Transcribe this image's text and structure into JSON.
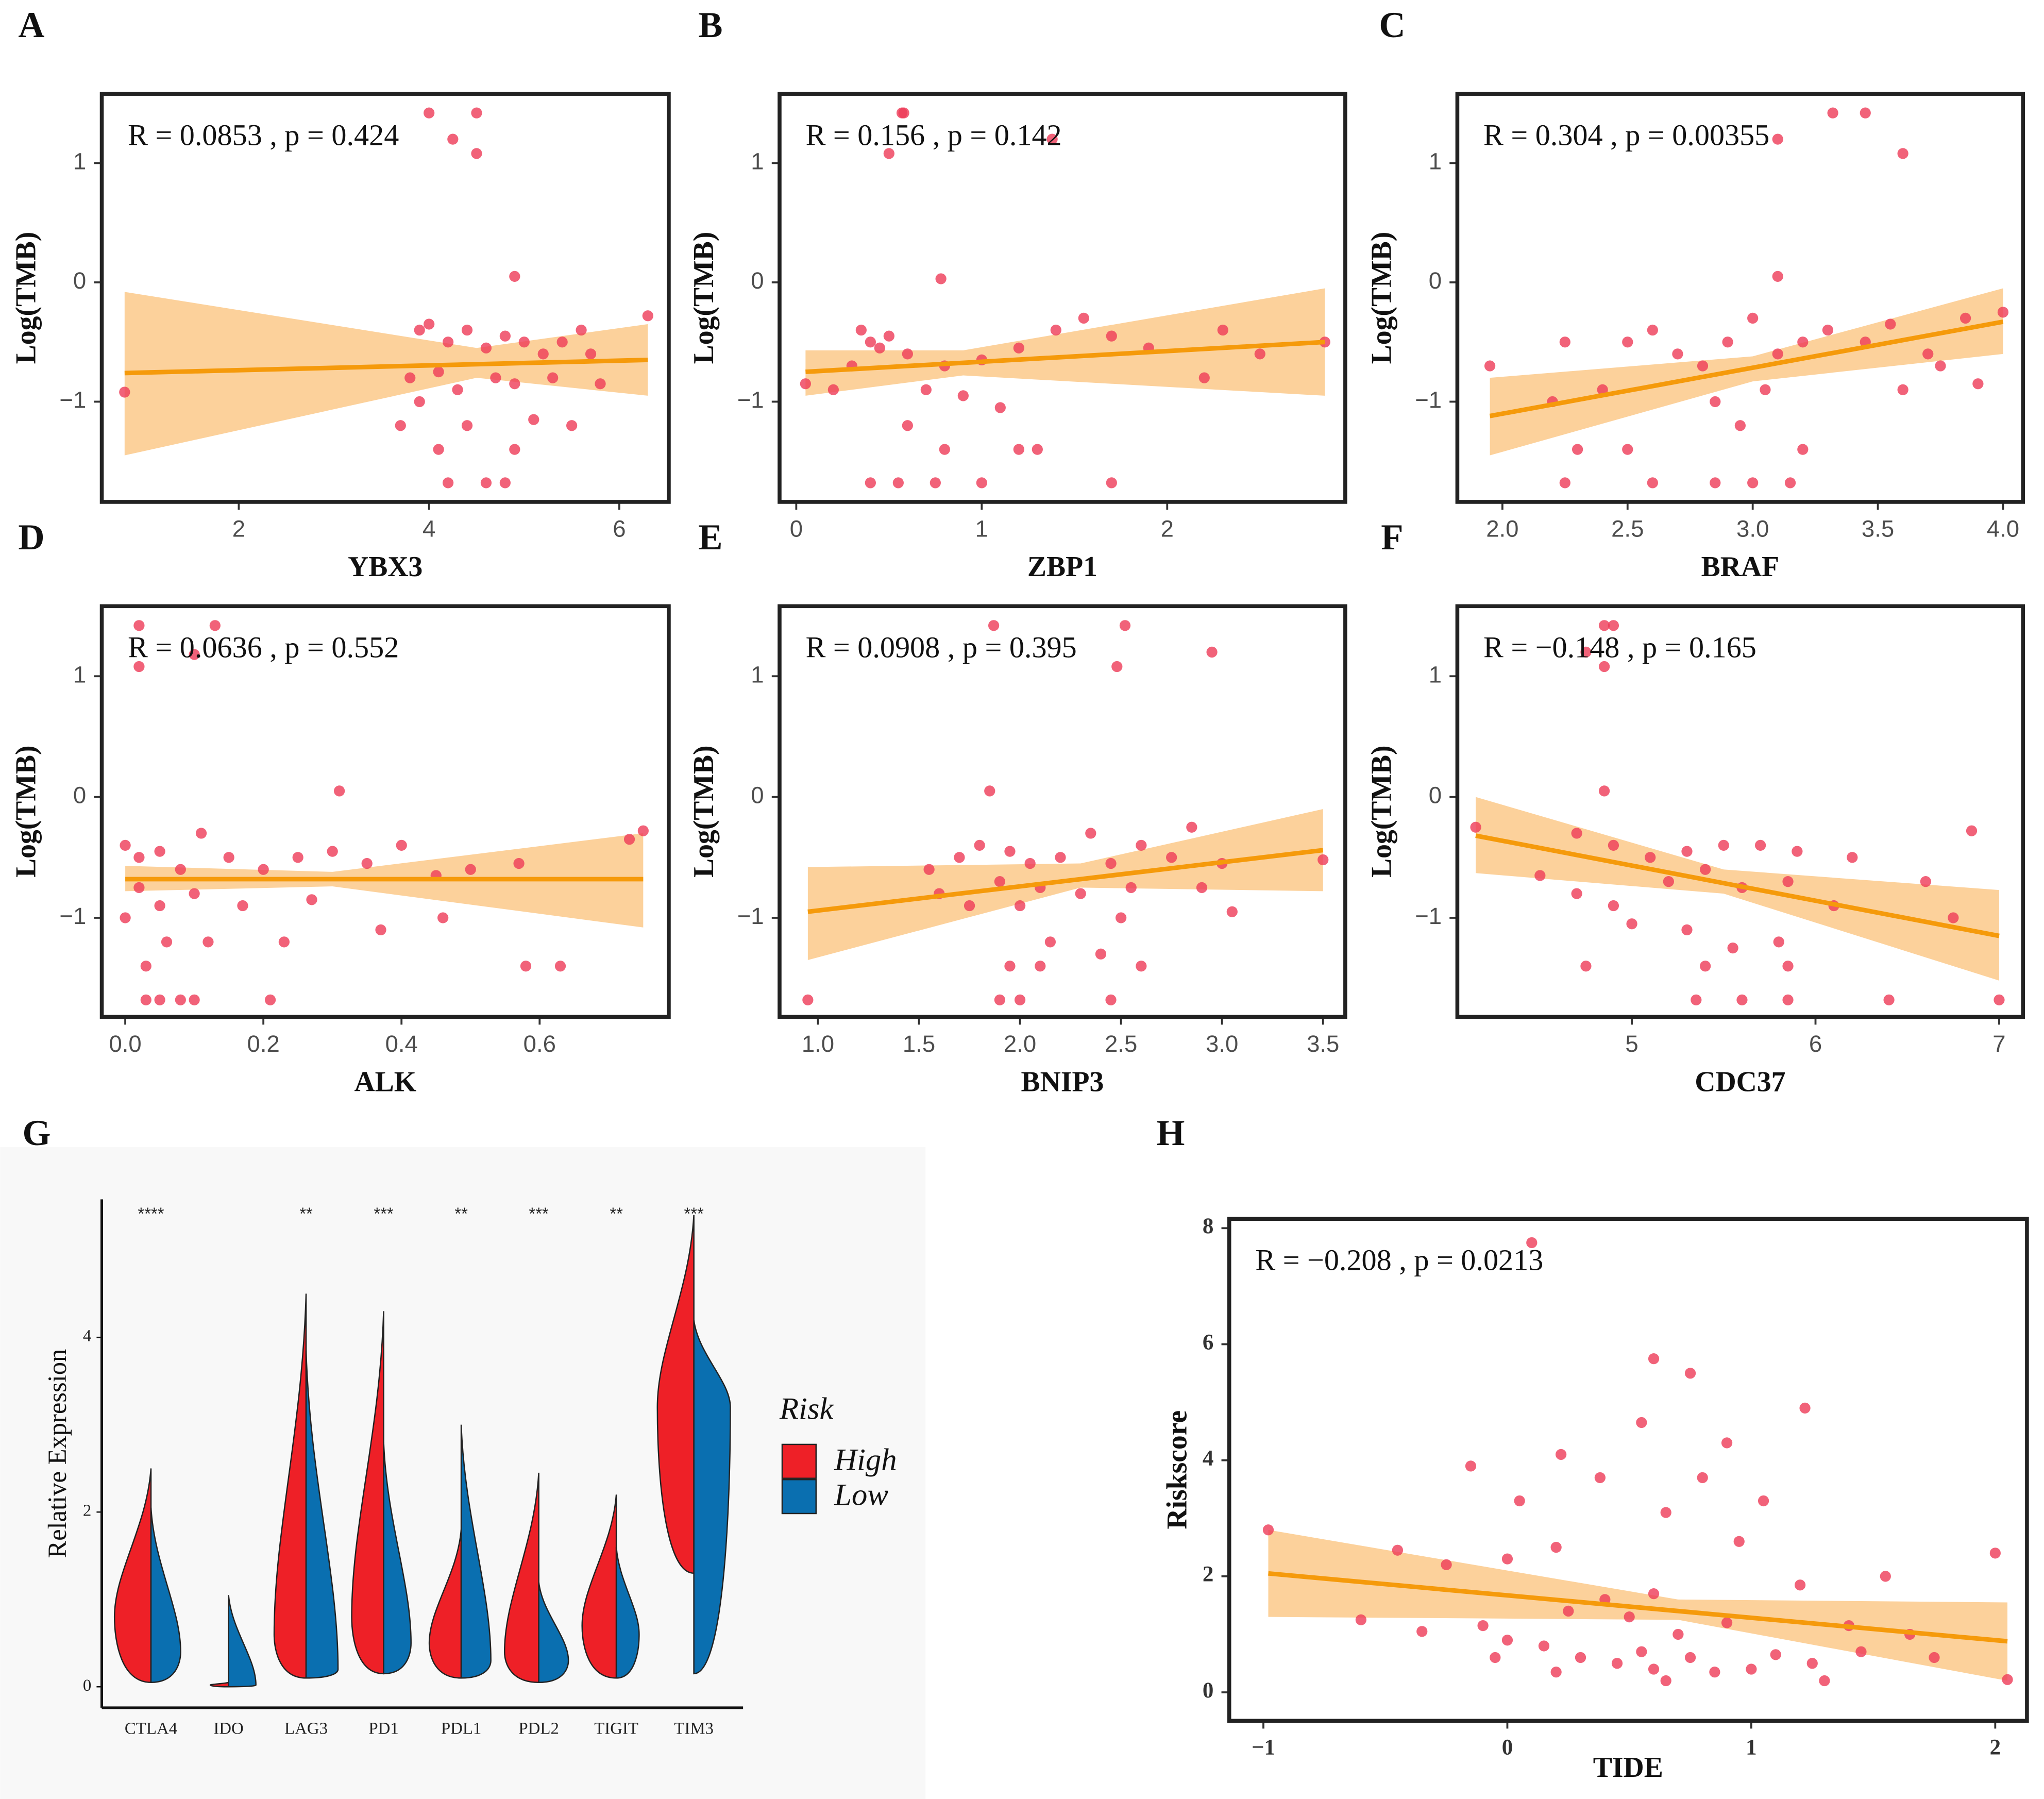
{
  "chart_data": [
    {
      "type": "scatter",
      "panel_label": "A",
      "xlabel": "YBX3",
      "ylabel": "Log(TMB)",
      "annotation": "R = 0.0853 , p = 0.424",
      "color": "#ee3b58",
      "fit_color": "#f59a0b",
      "band_color": "#fcc98a",
      "xlim": [
        0.56,
        6.52
      ],
      "ylim": [
        -1.84,
        1.58
      ],
      "xticks": [
        2,
        4,
        6
      ],
      "yticks": [
        {
          "value": -1,
          "label": "−1"
        },
        0,
        1
      ],
      "x": [
        0.8,
        4.0,
        4.5,
        4.25,
        4.5,
        4.9,
        6.3,
        3.9,
        4.0,
        4.2,
        4.4,
        4.6,
        4.8,
        5.0,
        5.2,
        5.4,
        5.6,
        3.8,
        4.1,
        4.3,
        4.7,
        4.9,
        5.3,
        5.8,
        3.9,
        4.4,
        5.1,
        5.5,
        4.1,
        4.9,
        4.2,
        4.6,
        4.8,
        3.7,
        5.7
      ],
      "y": [
        -0.92,
        1.42,
        1.42,
        1.2,
        1.08,
        0.05,
        -0.28,
        -0.4,
        -0.35,
        -0.5,
        -0.4,
        -0.55,
        -0.45,
        -0.5,
        -0.6,
        -0.5,
        -0.4,
        -0.8,
        -0.75,
        -0.9,
        -0.8,
        -0.85,
        -0.8,
        -0.85,
        -1.0,
        -1.2,
        -1.15,
        -1.2,
        -1.4,
        -1.4,
        -1.68,
        -1.68,
        -1.68,
        -1.2,
        -0.6
      ],
      "fit": {
        "x": [
          0.8,
          6.3
        ],
        "y": [
          -0.76,
          -0.65
        ]
      },
      "band": {
        "x": [
          0.8,
          4.5,
          6.3
        ],
        "lower": [
          -1.45,
          -0.8,
          -0.95
        ],
        "upper": [
          -0.08,
          -0.55,
          -0.35
        ]
      }
    },
    {
      "type": "scatter",
      "panel_label": "B",
      "xlabel": "ZBP1",
      "ylabel": "Log(TMB)",
      "annotation": "R = 0.156 , p = 0.142",
      "color": "#ee3b58",
      "fit_color": "#f59a0b",
      "band_color": "#fcc98a",
      "xlim": [
        -0.09,
        2.96
      ],
      "ylim": [
        -1.84,
        1.58
      ],
      "xticks": [
        0,
        1,
        2
      ],
      "yticks": [
        {
          "value": -1,
          "label": "−1"
        },
        0,
        1
      ],
      "x": [
        0.57,
        0.58,
        0.5,
        1.38,
        0.78,
        0.05,
        0.2,
        0.3,
        0.35,
        0.4,
        0.45,
        0.5,
        0.6,
        0.8,
        1.0,
        1.2,
        1.4,
        1.55,
        1.7,
        1.9,
        2.3,
        2.5,
        2.85,
        2.2,
        0.7,
        0.9,
        1.1,
        0.6,
        0.8,
        1.2,
        1.3,
        0.4,
        0.55,
        0.75,
        1.0,
        1.7
      ],
      "y": [
        1.42,
        1.42,
        1.08,
        1.2,
        0.03,
        -0.85,
        -0.9,
        -0.7,
        -0.4,
        -0.5,
        -0.55,
        -0.45,
        -0.6,
        -0.7,
        -0.65,
        -0.55,
        -0.4,
        -0.3,
        -0.45,
        -0.55,
        -0.4,
        -0.6,
        -0.5,
        -0.8,
        -0.9,
        -0.95,
        -1.05,
        -1.2,
        -1.4,
        -1.4,
        -1.4,
        -1.68,
        -1.68,
        -1.68,
        -1.68,
        -1.68
      ],
      "fit": {
        "x": [
          0.05,
          2.85
        ],
        "y": [
          -0.75,
          -0.5
        ]
      },
      "band": {
        "x": [
          0.05,
          0.9,
          2.85
        ],
        "lower": [
          -0.95,
          -0.78,
          -0.95
        ],
        "upper": [
          -0.57,
          -0.57,
          -0.05
        ]
      }
    },
    {
      "type": "scatter",
      "panel_label": "C",
      "xlabel": "BRAF",
      "ylabel": "Log(TMB)",
      "annotation": "R = 0.304 , p = 0.00355",
      "color": "#ee3b58",
      "fit_color": "#f59a0b",
      "band_color": "#fcc98a",
      "xlim": [
        1.82,
        4.08
      ],
      "ylim": [
        -1.84,
        1.58
      ],
      "xticks": [
        {
          "value": 2,
          "label": "2.0"
        },
        2.5,
        {
          "value": 3,
          "label": "3.0"
        },
        3.5,
        {
          "value": 4,
          "label": "4.0"
        }
      ],
      "yticks": [
        {
          "value": -1,
          "label": "−1"
        },
        0,
        1
      ],
      "x": [
        3.32,
        3.45,
        3.6,
        3.1,
        3.1,
        1.95,
        2.25,
        2.5,
        2.6,
        2.7,
        2.8,
        2.9,
        3.0,
        3.1,
        3.2,
        3.3,
        3.45,
        3.55,
        3.7,
        3.85,
        4.0,
        3.6,
        3.75,
        3.9,
        2.4,
        2.85,
        3.05,
        2.2,
        2.3,
        2.5,
        2.95,
        3.2,
        2.25,
        2.6,
        2.85,
        3.0,
        3.15
      ],
      "y": [
        1.42,
        1.42,
        1.08,
        1.2,
        0.05,
        -0.7,
        -0.5,
        -0.5,
        -0.4,
        -0.6,
        -0.7,
        -0.5,
        -0.3,
        -0.6,
        -0.5,
        -0.4,
        -0.5,
        -0.35,
        -0.6,
        -0.3,
        -0.25,
        -0.9,
        -0.7,
        -0.85,
        -0.9,
        -1.0,
        -0.9,
        -1.0,
        -1.4,
        -1.4,
        -1.2,
        -1.4,
        -1.68,
        -1.68,
        -1.68,
        -1.68,
        -1.68
      ],
      "fit": {
        "x": [
          1.95,
          4.0
        ],
        "y": [
          -1.12,
          -0.33
        ]
      },
      "band": {
        "x": [
          1.95,
          3.0,
          4.0
        ],
        "lower": [
          -1.45,
          -0.83,
          -0.6
        ],
        "upper": [
          -0.8,
          -0.62,
          -0.05
        ]
      }
    },
    {
      "type": "scatter",
      "panel_label": "D",
      "xlabel": "ALK",
      "ylabel": "Log(TMB)",
      "annotation": "R = 0.0636 , p = 0.552",
      "color": "#ee3b58",
      "fit_color": "#f59a0b",
      "band_color": "#fcc98a",
      "xlim": [
        -0.034,
        0.787
      ],
      "ylim": [
        -1.82,
        1.58
      ],
      "xticks": [
        {
          "value": 0,
          "label": "0.0"
        },
        0.2,
        0.4,
        0.6
      ],
      "yticks": [
        {
          "value": -1,
          "label": "−1"
        },
        0,
        1
      ],
      "x": [
        0.02,
        0.13,
        0.02,
        0.1,
        0.31,
        0.0,
        0.02,
        0.05,
        0.08,
        0.11,
        0.15,
        0.2,
        0.25,
        0.3,
        0.35,
        0.4,
        0.45,
        0.5,
        0.57,
        0.73,
        0.75,
        0.02,
        0.05,
        0.1,
        0.17,
        0.27,
        0.37,
        0.0,
        0.03,
        0.06,
        0.12,
        0.23,
        0.03,
        0.05,
        0.08,
        0.1,
        0.21,
        0.58,
        0.63,
        0.46
      ],
      "y": [
        1.42,
        1.42,
        1.08,
        1.18,
        0.05,
        -0.4,
        -0.5,
        -0.45,
        -0.6,
        -0.3,
        -0.5,
        -0.6,
        -0.5,
        -0.45,
        -0.55,
        -0.4,
        -0.65,
        -0.6,
        -0.55,
        -0.35,
        -0.28,
        -0.75,
        -0.9,
        -0.8,
        -0.9,
        -0.85,
        -1.1,
        -1.0,
        -1.4,
        -1.2,
        -1.2,
        -1.2,
        -1.68,
        -1.68,
        -1.68,
        -1.68,
        -1.68,
        -1.4,
        -1.4,
        -1.0
      ],
      "fit": {
        "x": [
          0.0,
          0.75
        ],
        "y": [
          -0.68,
          -0.68
        ]
      },
      "band": {
        "x": [
          0.0,
          0.3,
          0.75
        ],
        "lower": [
          -0.78,
          -0.74,
          -1.08
        ],
        "upper": [
          -0.57,
          -0.62,
          -0.3
        ]
      }
    },
    {
      "type": "scatter",
      "panel_label": "E",
      "xlabel": "BNIP3",
      "ylabel": "Log(TMB)",
      "annotation": "R = 0.0908 , p = 0.395",
      "color": "#ee3b58",
      "fit_color": "#f59a0b",
      "band_color": "#fcc98a",
      "xlim": [
        0.81,
        3.61
      ],
      "ylim": [
        -1.82,
        1.58
      ],
      "xticks": [
        {
          "value": 1,
          "label": "1.0"
        },
        1.5,
        {
          "value": 2,
          "label": "2.0"
        },
        2.5,
        {
          "value": 3,
          "label": "3.0"
        },
        3.5
      ],
      "yticks": [
        {
          "value": -1,
          "label": "−1"
        },
        0,
        1
      ],
      "x": [
        1.87,
        2.52,
        2.48,
        2.95,
        1.85,
        0.95,
        1.55,
        1.7,
        1.8,
        1.95,
        2.05,
        2.2,
        2.35,
        2.45,
        2.6,
        2.75,
        2.85,
        3.0,
        3.5,
        1.6,
        1.9,
        2.1,
        2.3,
        2.55,
        2.9,
        3.05,
        2.0,
        2.15,
        2.5,
        2.4,
        1.95,
        2.1,
        2.6,
        1.9,
        2.0,
        2.45,
        1.75
      ],
      "y": [
        1.42,
        1.42,
        1.08,
        1.2,
        0.05,
        -1.68,
        -0.6,
        -0.5,
        -0.4,
        -0.45,
        -0.55,
        -0.5,
        -0.3,
        -0.55,
        -0.4,
        -0.5,
        -0.25,
        -0.55,
        -0.52,
        -0.8,
        -0.7,
        -0.75,
        -0.8,
        -0.75,
        -0.75,
        -0.95,
        -0.9,
        -1.2,
        -1.0,
        -1.3,
        -1.4,
        -1.4,
        -1.4,
        -1.68,
        -1.68,
        -1.68,
        -0.9
      ],
      "fit": {
        "x": [
          0.95,
          3.5
        ],
        "y": [
          -0.95,
          -0.44
        ]
      },
      "band": {
        "x": [
          0.95,
          2.3,
          3.5
        ],
        "lower": [
          -1.35,
          -0.75,
          -0.78
        ],
        "upper": [
          -0.58,
          -0.55,
          -0.1
        ]
      }
    },
    {
      "type": "scatter",
      "panel_label": "F",
      "xlabel": "CDC37",
      "ylabel": "Log(TMB)",
      "annotation": "R = −0.148 , p = 0.165",
      "color": "#ee3b58",
      "fit_color": "#f59a0b",
      "band_color": "#fcc98a",
      "xlim": [
        4.05,
        7.13
      ],
      "ylim": [
        -1.82,
        1.58
      ],
      "xticks": [
        5,
        6,
        7
      ],
      "yticks": [
        {
          "value": -1,
          "label": "−1"
        },
        0,
        1
      ],
      "x": [
        4.85,
        4.9,
        4.85,
        4.75,
        4.85,
        4.15,
        4.7,
        4.9,
        5.1,
        5.3,
        5.5,
        5.7,
        5.9,
        6.2,
        6.85,
        4.5,
        4.7,
        4.9,
        5.2,
        5.4,
        5.6,
        5.85,
        6.1,
        6.6,
        6.75,
        4.75,
        5.0,
        5.3,
        5.55,
        5.8,
        5.4,
        5.85,
        5.35,
        5.6,
        5.85,
        6.4,
        7.0
      ],
      "y": [
        1.42,
        1.42,
        1.08,
        1.2,
        0.05,
        -0.25,
        -0.3,
        -0.4,
        -0.5,
        -0.45,
        -0.4,
        -0.4,
        -0.45,
        -0.5,
        -0.28,
        -0.65,
        -0.8,
        -0.9,
        -0.7,
        -0.6,
        -0.75,
        -0.7,
        -0.9,
        -0.7,
        -1.0,
        -1.4,
        -1.05,
        -1.1,
        -1.25,
        -1.2,
        -1.4,
        -1.4,
        -1.68,
        -1.68,
        -1.68,
        -1.68,
        -1.68
      ],
      "fit": {
        "x": [
          4.15,
          7.0
        ],
        "y": [
          -0.32,
          -1.15
        ]
      },
      "band": {
        "x": [
          4.15,
          5.5,
          7.0
        ],
        "lower": [
          -0.63,
          -0.8,
          -1.52
        ],
        "upper": [
          0.0,
          -0.6,
          -0.77
        ]
      }
    },
    {
      "type": "violin",
      "panel_label": "G",
      "ylabel": "Relative Expression",
      "categories": [
        "CTLA4",
        "IDO",
        "LAG3",
        "PD1",
        "PDL1",
        "PDL2",
        "TIGIT",
        "TIM3"
      ],
      "significance": [
        "****",
        null,
        "**",
        "***",
        "**",
        "***",
        "**",
        "***"
      ],
      "ylim": [
        -0.24,
        5.58
      ],
      "yticks": [
        0,
        2,
        4
      ],
      "legend_title": "Risk",
      "series": [
        {
          "name": "High",
          "color": "#ee2027",
          "min": [
            0.05,
            0,
            0.1,
            0.15,
            0.1,
            0.05,
            0.1,
            1.3
          ],
          "max": [
            2.5,
            0.05,
            4.5,
            4.3,
            1.8,
            2.45,
            2.2,
            5.4
          ],
          "mode": [
            0.8,
            0.02,
            0.6,
            0.8,
            0.5,
            0.4,
            0.7,
            3.2
          ],
          "density": [
            0.8,
            0.4,
            0.7,
            0.7,
            0.7,
            0.75,
            0.75,
            0.8
          ]
        },
        {
          "name": "Low",
          "color": "#0a6fb0",
          "min": [
            0.05,
            0,
            0.1,
            0.15,
            0.1,
            0.05,
            0.1,
            0.15
          ],
          "max": [
            2.05,
            1.05,
            3.85,
            2.8,
            3.0,
            1.2,
            1.6,
            4.2
          ],
          "mode": [
            0.4,
            0.02,
            0.2,
            0.5,
            0.3,
            0.3,
            0.6,
            3.2
          ],
          "density": [
            0.65,
            0.6,
            0.7,
            0.6,
            0.65,
            0.65,
            0.5,
            0.8
          ]
        }
      ]
    },
    {
      "type": "scatter",
      "panel_label": "H",
      "xlabel": "TIDE",
      "ylabel": "Riskscore",
      "annotation": "R = −0.208 , p = 0.0213",
      "color": "#ee3b58",
      "fit_color": "#f59a0b",
      "band_color": "#fcc98a",
      "xlim": [
        -1.14,
        2.13
      ],
      "ylim": [
        -0.49,
        8.16
      ],
      "xticks": [
        {
          "value": -1,
          "label": "−1"
        },
        0,
        1,
        2
      ],
      "yticks": [
        0,
        2,
        4,
        6,
        8
      ],
      "x": [
        -0.98,
        0.1,
        0.6,
        0.75,
        1.22,
        0.55,
        0.9,
        -0.15,
        0.22,
        0.38,
        0.8,
        0.05,
        1.05,
        0.65,
        0.95,
        2.0,
        -0.45,
        -0.25,
        0.0,
        0.2,
        1.55,
        0.4,
        0.6,
        1.2,
        -0.6,
        -0.35,
        -0.1,
        0.25,
        0.5,
        0.7,
        0.9,
        1.4,
        1.75,
        0.0,
        0.15,
        0.3,
        0.45,
        0.55,
        0.6,
        0.75,
        0.85,
        1.0,
        1.1,
        1.25,
        1.3,
        -0.05,
        0.2,
        0.65,
        2.05,
        1.65,
        1.45
      ],
      "y": [
        2.8,
        7.75,
        5.75,
        5.5,
        4.9,
        4.65,
        4.3,
        3.9,
        4.1,
        3.7,
        3.7,
        3.3,
        3.3,
        3.1,
        2.6,
        2.4,
        2.45,
        2.2,
        2.3,
        2.5,
        2.0,
        1.6,
        1.7,
        1.85,
        1.25,
        1.05,
        1.15,
        1.4,
        1.3,
        1.0,
        1.2,
        1.15,
        0.6,
        0.9,
        0.8,
        0.6,
        0.5,
        0.7,
        0.4,
        0.6,
        0.35,
        0.4,
        0.65,
        0.5,
        0.2,
        0.6,
        0.35,
        0.2,
        0.22,
        1.0,
        0.7
      ],
      "fit": {
        "x": [
          -0.98,
          2.05
        ],
        "y": [
          2.05,
          0.88
        ]
      },
      "band": {
        "x": [
          -0.98,
          0.7,
          2.05
        ],
        "lower": [
          1.3,
          1.25,
          0.2
        ],
        "upper": [
          2.8,
          1.6,
          1.55
        ]
      }
    }
  ]
}
